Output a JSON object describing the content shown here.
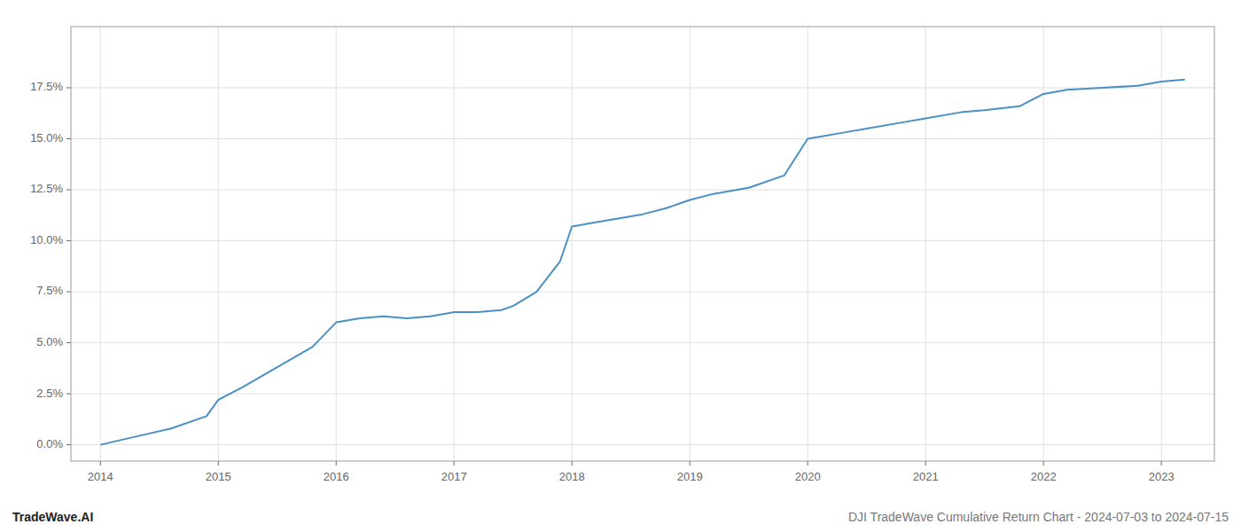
{
  "chart_data": {
    "type": "line",
    "annotations": [
      "TradeWave.AI",
      "DJI TradeWave Cumulative Return Chart - 2024-07-03 to 2024-07-15"
    ],
    "x": [
      2014.0,
      2014.3,
      2014.6,
      2014.9,
      2015.0,
      2015.2,
      2015.5,
      2015.8,
      2016.0,
      2016.2,
      2016.4,
      2016.6,
      2016.8,
      2017.0,
      2017.2,
      2017.4,
      2017.5,
      2017.7,
      2017.9,
      2018.0,
      2018.2,
      2018.4,
      2018.6,
      2018.8,
      2019.0,
      2019.2,
      2019.5,
      2019.8,
      2020.0,
      2020.1,
      2020.3,
      2020.5,
      2020.8,
      2021.0,
      2021.3,
      2021.5,
      2021.8,
      2022.0,
      2022.2,
      2022.5,
      2022.8,
      2023.0,
      2023.2
    ],
    "values": [
      0.0,
      0.004,
      0.008,
      0.014,
      0.022,
      0.028,
      0.038,
      0.048,
      0.06,
      0.062,
      0.063,
      0.062,
      0.063,
      0.065,
      0.065,
      0.066,
      0.068,
      0.075,
      0.09,
      0.107,
      0.109,
      0.111,
      0.113,
      0.116,
      0.12,
      0.123,
      0.126,
      0.132,
      0.15,
      0.151,
      0.153,
      0.155,
      0.158,
      0.16,
      0.163,
      0.164,
      0.166,
      0.172,
      0.174,
      0.175,
      0.176,
      0.178,
      0.179
    ],
    "color": "#4a90c4",
    "xlim": [
      2013.75,
      2023.45
    ],
    "ylim": [
      -0.008,
      0.205
    ],
    "xticks": [
      2014,
      2015,
      2016,
      2017,
      2018,
      2019,
      2020,
      2021,
      2022,
      2023
    ],
    "yticks": [
      {
        "value": 0.0,
        "label": "0.0%"
      },
      {
        "value": 0.025,
        "label": "2.5%"
      },
      {
        "value": 0.05,
        "label": "5.0%"
      },
      {
        "value": 0.075,
        "label": "7.5%"
      },
      {
        "value": 0.1,
        "label": "10.0%"
      },
      {
        "value": 0.125,
        "label": "12.5%"
      },
      {
        "value": 0.15,
        "label": "15.0%"
      },
      {
        "value": 0.175,
        "label": "17.5%"
      }
    ],
    "grid": true
  }
}
